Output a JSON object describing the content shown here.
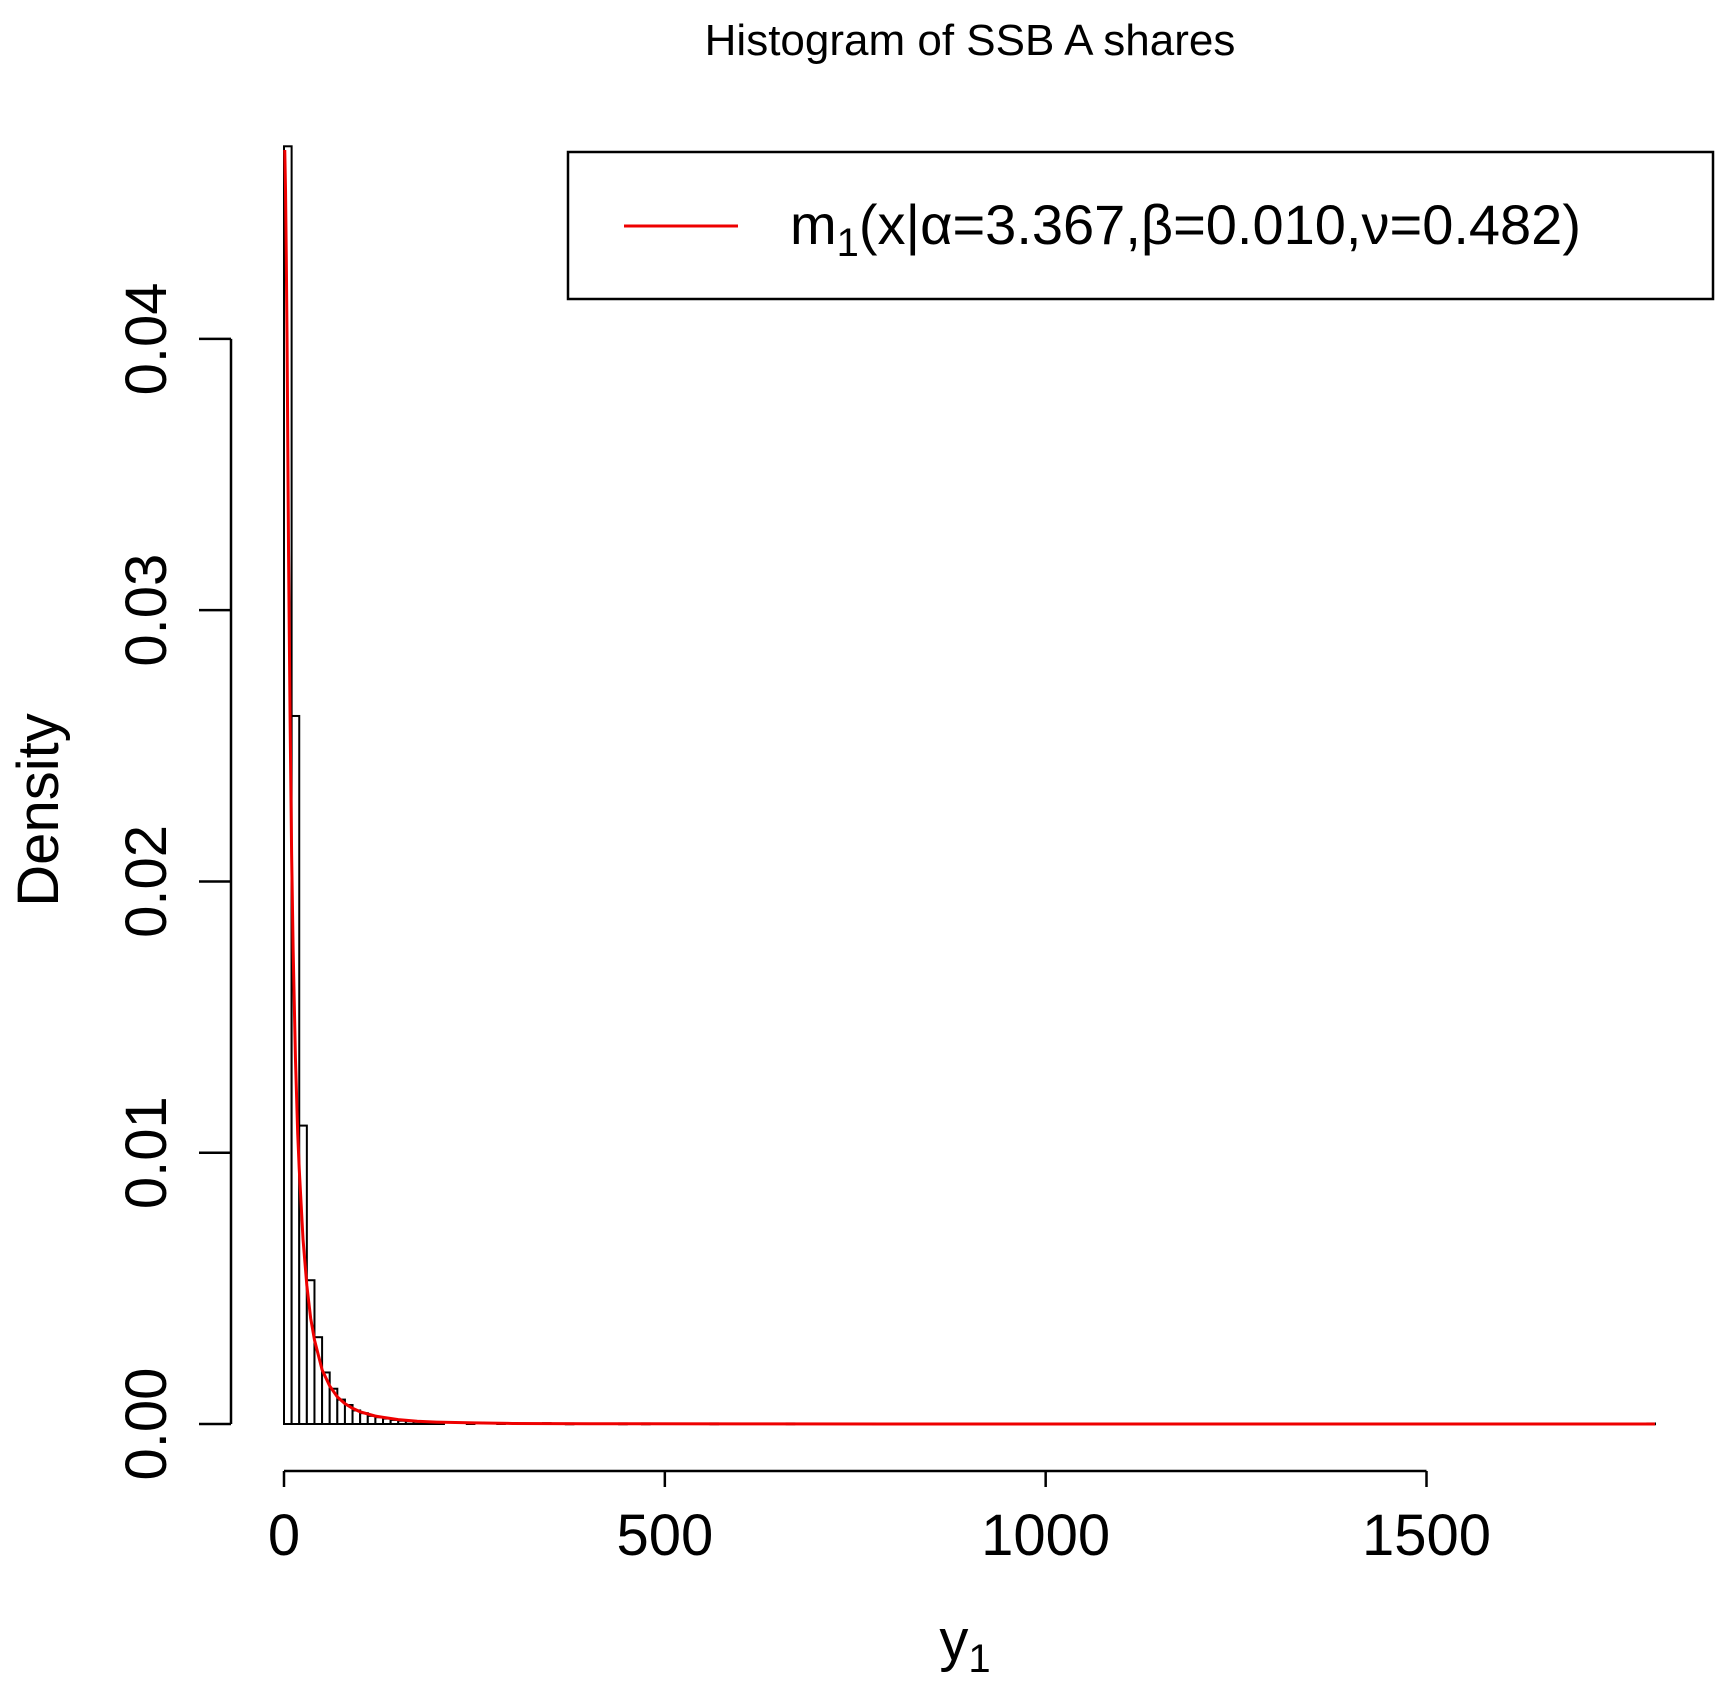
{
  "chart_data": {
    "type": "bar",
    "title": "Histogram of SSB A shares",
    "xlabel": {
      "main": "y",
      "sub": "1"
    },
    "ylabel": "Density",
    "xlim": [
      0,
      1800
    ],
    "ylim": [
      0,
      0.047
    ],
    "x_ticks": [
      0,
      500,
      1000,
      1500
    ],
    "x_tick_labels": [
      "0",
      "500",
      "1000",
      "1500"
    ],
    "y_ticks": [
      0,
      0.01,
      0.02,
      0.03,
      0.04
    ],
    "y_tick_labels": [
      "0.00",
      "0.01",
      "0.02",
      "0.03",
      "0.04"
    ],
    "grid": false,
    "legend_position": "top-right",
    "bin_width": 10,
    "bins": [
      {
        "x0": 0,
        "x1": 10,
        "density": 0.0471
      },
      {
        "x0": 10,
        "x1": 20,
        "density": 0.0261
      },
      {
        "x0": 20,
        "x1": 30,
        "density": 0.011
      },
      {
        "x0": 30,
        "x1": 40,
        "density": 0.0053
      },
      {
        "x0": 40,
        "x1": 50,
        "density": 0.0032
      },
      {
        "x0": 50,
        "x1": 60,
        "density": 0.0019
      },
      {
        "x0": 60,
        "x1": 70,
        "density": 0.0013
      },
      {
        "x0": 70,
        "x1": 80,
        "density": 0.0009
      },
      {
        "x0": 80,
        "x1": 90,
        "density": 0.0007
      },
      {
        "x0": 90,
        "x1": 100,
        "density": 0.0005
      },
      {
        "x0": 100,
        "x1": 110,
        "density": 0.0004
      },
      {
        "x0": 110,
        "x1": 120,
        "density": 0.0003
      },
      {
        "x0": 120,
        "x1": 130,
        "density": 0.00025
      },
      {
        "x0": 130,
        "x1": 140,
        "density": 0.0002
      },
      {
        "x0": 140,
        "x1": 150,
        "density": 0.00015
      },
      {
        "x0": 150,
        "x1": 160,
        "density": 0.00012
      },
      {
        "x0": 160,
        "x1": 170,
        "density": 0.0001
      },
      {
        "x0": 170,
        "x1": 180,
        "density": 8e-05
      },
      {
        "x0": 180,
        "x1": 190,
        "density": 7e-05
      },
      {
        "x0": 190,
        "x1": 200,
        "density": 6e-05
      },
      {
        "x0": 200,
        "x1": 210,
        "density": 5e-05
      },
      {
        "x0": 240,
        "x1": 250,
        "density": 4e-05
      },
      {
        "x0": 280,
        "x1": 290,
        "density": 3e-05
      },
      {
        "x0": 340,
        "x1": 350,
        "density": 3e-05
      },
      {
        "x0": 370,
        "x1": 380,
        "density": 2e-05
      },
      {
        "x0": 440,
        "x1": 450,
        "density": 2e-05
      },
      {
        "x0": 470,
        "x1": 480,
        "density": 2e-05
      },
      {
        "x0": 560,
        "x1": 570,
        "density": 2e-05
      },
      {
        "x0": 660,
        "x1": 670,
        "density": 2e-05
      },
      {
        "x0": 1790,
        "x1": 1800,
        "density": 2e-05
      }
    ],
    "series": [
      {
        "name": "m1(x|α=3.367,β=0.010,ν=0.482)",
        "legend": {
          "main": "m",
          "sub": "1",
          "rest": "(x|α=3.367,β=0.010,ν=0.482)"
        },
        "type": "line",
        "color": "#ee0000",
        "points": [
          [
            1,
            0.0475
          ],
          [
            2,
            0.0455
          ],
          [
            3,
            0.043
          ],
          [
            4,
            0.04
          ],
          [
            5,
            0.036
          ],
          [
            6,
            0.032
          ],
          [
            8,
            0.026
          ],
          [
            10,
            0.021
          ],
          [
            12,
            0.0175
          ],
          [
            15,
            0.0135
          ],
          [
            18,
            0.0107
          ],
          [
            20,
            0.0094
          ],
          [
            25,
            0.0068
          ],
          [
            30,
            0.0051
          ],
          [
            35,
            0.0039
          ],
          [
            40,
            0.0031
          ],
          [
            50,
            0.002
          ],
          [
            60,
            0.0014
          ],
          [
            70,
            0.001
          ],
          [
            80,
            0.00075
          ],
          [
            90,
            0.00058
          ],
          [
            100,
            0.00045
          ],
          [
            120,
            0.00029
          ],
          [
            150,
            0.00016
          ],
          [
            175,
            0.0001
          ],
          [
            200,
            7e-05
          ],
          [
            250,
            4e-05
          ],
          [
            300,
            2e-05
          ],
          [
            400,
            1e-05
          ],
          [
            600,
            3e-06
          ],
          [
            1000,
            5e-07
          ],
          [
            1800,
            0.0
          ]
        ]
      }
    ]
  }
}
